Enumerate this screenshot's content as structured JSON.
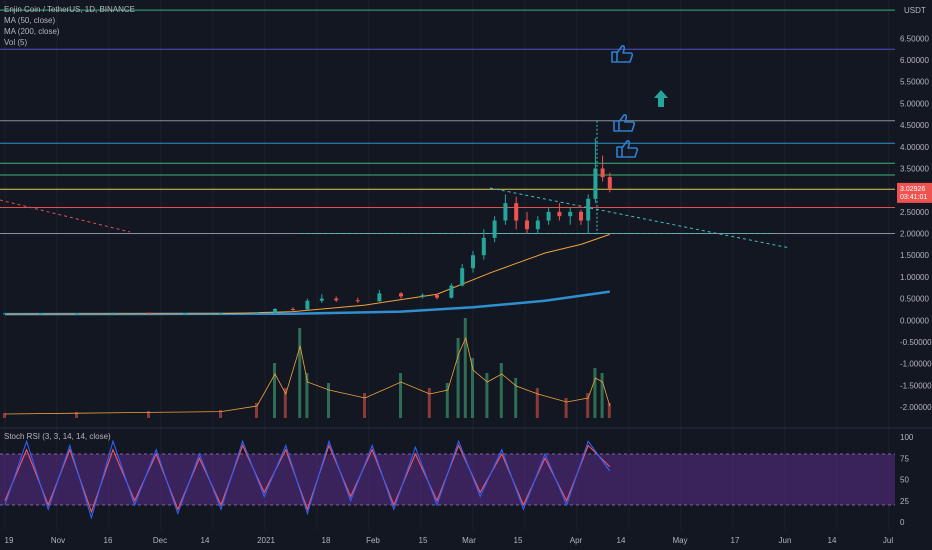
{
  "header": {
    "symbol": "Enjin Coin / TetherUS, 1D, BINANCE",
    "indicators": [
      "MA (50, close)",
      "MA (200, close)",
      "Vol (5)"
    ],
    "oscillator": "Stoch RSI (3, 3, 14, 14, close)"
  },
  "price_axis": {
    "unit": "USDT",
    "ticks": [
      "6.50000",
      "6.00000",
      "5.50000",
      "5.00000",
      "4.50000",
      "4.00000",
      "3.50000",
      "3.00000",
      "2.50000",
      "2.00000",
      "1.50000",
      "1.00000",
      "0.50000",
      "0.00000",
      "-0.50000",
      "-1.00000",
      "-1.50000",
      "-2.00000"
    ],
    "last_price": "3.02926",
    "last_price_sub": "03:41:01"
  },
  "rsi_axis": {
    "ticks": [
      "100",
      "75",
      "50",
      "25",
      "0"
    ]
  },
  "time_axis": {
    "ticks": [
      "19",
      "Nov",
      "16",
      "Dec",
      "14",
      "2021",
      "18",
      "Feb",
      "15",
      "Mar",
      "15",
      "Apr",
      "14",
      "May",
      "17",
      "Jun",
      "14",
      "Jul"
    ]
  },
  "colors": {
    "background": "#131722",
    "up": "#26a69a",
    "down": "#ef5350",
    "ma50": "#f0a33a",
    "ma200": "#2f8fd0",
    "rsi_k": "#2962ff",
    "rsi_d": "#ff5252",
    "rsi_band": "#5b2c8a",
    "annotation": "#2f7fd0",
    "arrow": "#26a69a"
  },
  "chart_data": {
    "type": "candlestick",
    "ylim": [
      -2.3,
      7.2
    ],
    "horizontal_levels": [
      7.15,
      6.25,
      4.6,
      4.08,
      3.62,
      3.35,
      3.02,
      2.6,
      2.0
    ],
    "price_series": [
      {
        "d": 0,
        "o": 0.16,
        "h": 0.17,
        "l": 0.15,
        "c": 0.16
      },
      {
        "d": 10,
        "o": 0.16,
        "h": 0.17,
        "l": 0.15,
        "c": 0.16
      },
      {
        "d": 20,
        "o": 0.16,
        "h": 0.17,
        "l": 0.15,
        "c": 0.16
      },
      {
        "d": 30,
        "o": 0.16,
        "h": 0.18,
        "l": 0.15,
        "c": 0.17
      },
      {
        "d": 40,
        "o": 0.17,
        "h": 0.18,
        "l": 0.15,
        "c": 0.16
      },
      {
        "d": 50,
        "o": 0.16,
        "h": 0.17,
        "l": 0.15,
        "c": 0.16
      },
      {
        "d": 60,
        "o": 0.16,
        "h": 0.17,
        "l": 0.15,
        "c": 0.16
      },
      {
        "d": 70,
        "o": 0.16,
        "h": 0.19,
        "l": 0.15,
        "c": 0.18
      },
      {
        "d": 75,
        "o": 0.18,
        "h": 0.28,
        "l": 0.17,
        "c": 0.26
      },
      {
        "d": 80,
        "o": 0.26,
        "h": 0.3,
        "l": 0.22,
        "c": 0.25
      },
      {
        "d": 84,
        "o": 0.25,
        "h": 0.5,
        "l": 0.24,
        "c": 0.45
      },
      {
        "d": 88,
        "o": 0.45,
        "h": 0.6,
        "l": 0.4,
        "c": 0.5
      },
      {
        "d": 92,
        "o": 0.5,
        "h": 0.55,
        "l": 0.42,
        "c": 0.46
      },
      {
        "d": 98,
        "o": 0.46,
        "h": 0.52,
        "l": 0.4,
        "c": 0.44
      },
      {
        "d": 104,
        "o": 0.44,
        "h": 0.7,
        "l": 0.42,
        "c": 0.62
      },
      {
        "d": 110,
        "o": 0.62,
        "h": 0.65,
        "l": 0.5,
        "c": 0.55
      },
      {
        "d": 116,
        "o": 0.55,
        "h": 0.62,
        "l": 0.5,
        "c": 0.58
      },
      {
        "d": 120,
        "o": 0.58,
        "h": 0.62,
        "l": 0.48,
        "c": 0.52
      },
      {
        "d": 124,
        "o": 0.52,
        "h": 0.85,
        "l": 0.5,
        "c": 0.8
      },
      {
        "d": 127,
        "o": 0.8,
        "h": 1.3,
        "l": 0.78,
        "c": 1.2
      },
      {
        "d": 130,
        "o": 1.2,
        "h": 1.6,
        "l": 1.1,
        "c": 1.5
      },
      {
        "d": 133,
        "o": 1.5,
        "h": 2.1,
        "l": 1.4,
        "c": 1.9
      },
      {
        "d": 136,
        "o": 1.9,
        "h": 2.4,
        "l": 1.8,
        "c": 2.3
      },
      {
        "d": 139,
        "o": 2.3,
        "h": 2.9,
        "l": 2.2,
        "c": 2.7
      },
      {
        "d": 142,
        "o": 2.7,
        "h": 2.85,
        "l": 2.1,
        "c": 2.3
      },
      {
        "d": 145,
        "o": 2.3,
        "h": 2.5,
        "l": 2.0,
        "c": 2.1
      },
      {
        "d": 148,
        "o": 2.1,
        "h": 2.4,
        "l": 2.0,
        "c": 2.3
      },
      {
        "d": 151,
        "o": 2.3,
        "h": 2.6,
        "l": 2.2,
        "c": 2.5
      },
      {
        "d": 154,
        "o": 2.5,
        "h": 2.7,
        "l": 2.3,
        "c": 2.4
      },
      {
        "d": 157,
        "o": 2.4,
        "h": 2.6,
        "l": 2.2,
        "c": 2.5
      },
      {
        "d": 160,
        "o": 2.5,
        "h": 2.55,
        "l": 2.2,
        "c": 2.3
      },
      {
        "d": 162,
        "o": 2.3,
        "h": 2.9,
        "l": 2.0,
        "c": 2.8
      },
      {
        "d": 164,
        "o": 2.8,
        "h": 4.2,
        "l": 2.7,
        "c": 3.5
      },
      {
        "d": 166,
        "o": 3.5,
        "h": 3.8,
        "l": 3.2,
        "c": 3.3
      },
      {
        "d": 168,
        "o": 3.3,
        "h": 3.4,
        "l": 2.95,
        "c": 3.03
      }
    ],
    "ma50": [
      [
        0,
        0.14
      ],
      [
        60,
        0.15
      ],
      [
        80,
        0.2
      ],
      [
        100,
        0.35
      ],
      [
        120,
        0.6
      ],
      [
        135,
        1.1
      ],
      [
        150,
        1.55
      ],
      [
        160,
        1.75
      ],
      [
        168,
        1.98
      ]
    ],
    "ma200": [
      [
        0,
        0.14
      ],
      [
        80,
        0.15
      ],
      [
        110,
        0.2
      ],
      [
        130,
        0.3
      ],
      [
        150,
        0.45
      ],
      [
        168,
        0.66
      ]
    ],
    "volume": [
      [
        0,
        0.05
      ],
      [
        20,
        0.06
      ],
      [
        40,
        0.07
      ],
      [
        60,
        0.08
      ],
      [
        70,
        0.15
      ],
      [
        75,
        0.55
      ],
      [
        78,
        0.3
      ],
      [
        82,
        0.9
      ],
      [
        84,
        0.45
      ],
      [
        90,
        0.35
      ],
      [
        100,
        0.25
      ],
      [
        110,
        0.45
      ],
      [
        118,
        0.3
      ],
      [
        123,
        0.35
      ],
      [
        126,
        0.8
      ],
      [
        128,
        1.0
      ],
      [
        130,
        0.6
      ],
      [
        134,
        0.45
      ],
      [
        138,
        0.55
      ],
      [
        142,
        0.4
      ],
      [
        148,
        0.3
      ],
      [
        156,
        0.2
      ],
      [
        162,
        0.25
      ],
      [
        164,
        0.5
      ],
      [
        166,
        0.45
      ],
      [
        168,
        0.15
      ]
    ],
    "stoch_rsi_k": [
      [
        0,
        20
      ],
      [
        6,
        95
      ],
      [
        12,
        15
      ],
      [
        18,
        90
      ],
      [
        24,
        5
      ],
      [
        30,
        95
      ],
      [
        36,
        20
      ],
      [
        42,
        85
      ],
      [
        48,
        10
      ],
      [
        54,
        80
      ],
      [
        60,
        15
      ],
      [
        66,
        95
      ],
      [
        72,
        30
      ],
      [
        78,
        90
      ],
      [
        84,
        10
      ],
      [
        90,
        95
      ],
      [
        96,
        25
      ],
      [
        102,
        90
      ],
      [
        108,
        15
      ],
      [
        114,
        88
      ],
      [
        120,
        20
      ],
      [
        126,
        95
      ],
      [
        132,
        30
      ],
      [
        138,
        85
      ],
      [
        144,
        15
      ],
      [
        150,
        80
      ],
      [
        156,
        20
      ],
      [
        162,
        95
      ],
      [
        168,
        60
      ]
    ],
    "stoch_rsi_d": [
      [
        0,
        25
      ],
      [
        6,
        85
      ],
      [
        12,
        20
      ],
      [
        18,
        85
      ],
      [
        24,
        12
      ],
      [
        30,
        85
      ],
      [
        36,
        25
      ],
      [
        42,
        80
      ],
      [
        48,
        15
      ],
      [
        54,
        75
      ],
      [
        60,
        20
      ],
      [
        66,
        90
      ],
      [
        72,
        35
      ],
      [
        78,
        85
      ],
      [
        84,
        15
      ],
      [
        90,
        90
      ],
      [
        96,
        30
      ],
      [
        102,
        85
      ],
      [
        108,
        20
      ],
      [
        114,
        80
      ],
      [
        120,
        25
      ],
      [
        126,
        90
      ],
      [
        132,
        35
      ],
      [
        138,
        80
      ],
      [
        144,
        20
      ],
      [
        150,
        75
      ],
      [
        156,
        25
      ],
      [
        162,
        90
      ],
      [
        168,
        65
      ]
    ]
  }
}
